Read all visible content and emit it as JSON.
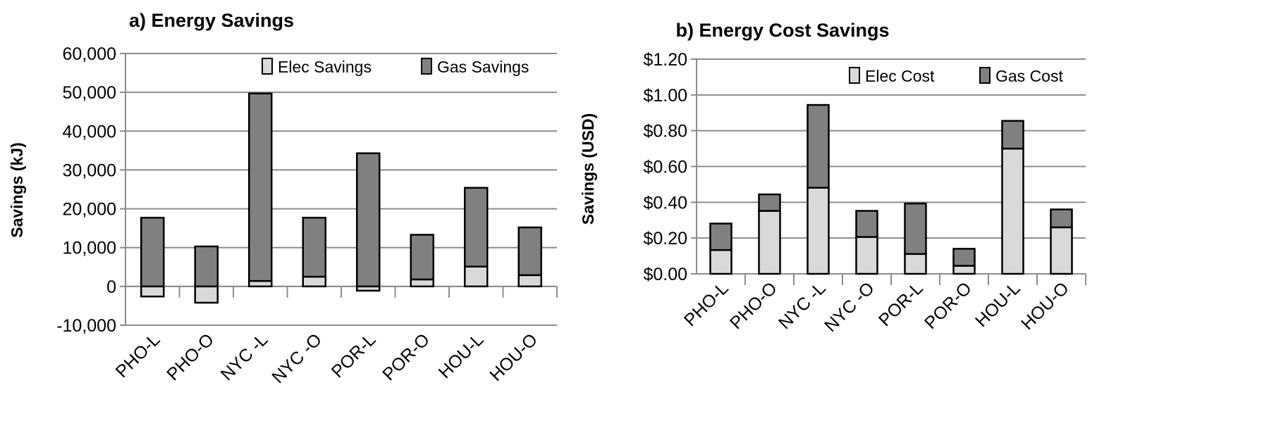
{
  "colors": {
    "elec": "#d9d9d9",
    "gas": "#808080",
    "grid": "#8c8c8c",
    "outline": "#000000"
  },
  "chart_data": [
    {
      "type": "bar",
      "stacked": true,
      "title": "a) Energy Savings",
      "xlabel": "",
      "ylabel": "Savings (kJ)",
      "ylim": [
        -10000,
        60000
      ],
      "yticks": [
        -10000,
        0,
        10000,
        20000,
        30000,
        40000,
        50000,
        60000
      ],
      "ytick_labels": [
        "-10,000",
        "0",
        "10,000",
        "20,000",
        "30,000",
        "40,000",
        "50,000",
        "60,000"
      ],
      "grid": true,
      "legend": "top-right",
      "categories": [
        "PHO-L",
        "PHO-O",
        "NYC -L",
        "NYC -O",
        "POR-L",
        "POR-O",
        "HOU-L",
        "HOU-O"
      ],
      "series": [
        {
          "name": "Elec Savings",
          "values": [
            -2600,
            -4200,
            1400,
            2500,
            -1100,
            1800,
            5100,
            2900
          ]
        },
        {
          "name": "Gas Savings",
          "values": [
            17700,
            10300,
            48300,
            15200,
            34300,
            11500,
            20300,
            12300
          ]
        }
      ]
    },
    {
      "type": "bar",
      "stacked": true,
      "title": "b) Energy Cost Savings",
      "xlabel": "",
      "ylabel": "Savings (USD)",
      "ylim": [
        0,
        1.2
      ],
      "yticks": [
        0,
        0.2,
        0.4,
        0.6,
        0.8,
        1.0,
        1.2
      ],
      "ytick_labels": [
        "$0.00",
        "$0.20",
        "$0.40",
        "$0.60",
        "$0.80",
        "$1.00",
        "$1.20"
      ],
      "grid": true,
      "legend": "top-right",
      "categories": [
        "PHO-L",
        "PHO-O",
        "NYC -L",
        "NYC -O",
        "POR-L",
        "POR-O",
        "HOU-L",
        "HOU-O"
      ],
      "series": [
        {
          "name": "Elec Cost",
          "values": [
            0.133,
            0.352,
            0.481,
            0.206,
            0.111,
            0.045,
            0.7,
            0.26
          ]
        },
        {
          "name": "Gas Cost",
          "values": [
            0.148,
            0.092,
            0.463,
            0.146,
            0.282,
            0.095,
            0.155,
            0.1
          ]
        }
      ]
    }
  ]
}
